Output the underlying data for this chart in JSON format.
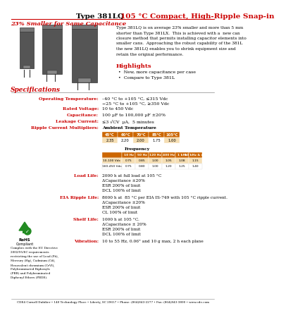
{
  "title_black": "Type 381LQ",
  "title_red": "105 °C Compact, High-Ripple Snap-in",
  "subtitle": "23% Smaller for Same Capacitance",
  "description": "Type 381LQ is on average 23% smaller and more than 5 mm\nshorter than Type 381LX.  This is achieved with a  new can\nclosure method that permits installing capacitor elements into\nsmaller cans.  Approaching the robust capability of the 381L\nthe new 381LQ enables you to shrink equipment size and\nretain the original performance.",
  "highlights_title": "Highlights",
  "highlights": [
    "New, more capacitance per case",
    "Compare to Type 381L"
  ],
  "spec_title": "Specifications",
  "specs": [
    [
      "Operating Temperature:",
      "–40 °C to +105 °C, ≤315 Vdc\n−25 °C to +105 °C, ≥350 Vdc"
    ],
    [
      "Rated Voltage:",
      "10 to 450 Vdc"
    ],
    [
      "Capacitance:",
      "100 µF to 100,000 µF ±20%"
    ],
    [
      "Leakage Current:",
      "≤3 √CV  µA,  5 minutes"
    ],
    [
      "Ripple Current Multipliers:",
      "Ambient Temperature"
    ]
  ],
  "ambient_headers": [
    "45°C",
    "60°C",
    "70°C",
    "85°C",
    "105°C"
  ],
  "ambient_values": [
    "2.35",
    "2.20",
    "2.00",
    "1.75",
    "1.00"
  ],
  "freq_label": "Frequency",
  "freq_headers": [
    "10 Hz",
    "50 Hz",
    "120 Hz",
    "400 Hz",
    "1 kHz",
    "10 kHz & up"
  ],
  "freq_row1_label": "10-100 Vdc",
  "freq_row1": [
    "0.75",
    "0.85",
    "1.00",
    "1.05",
    "1.08",
    "1.15"
  ],
  "freq_row2_label": "160-450 Vdc",
  "freq_row2": [
    "0.75",
    "0.80",
    "1.00",
    "1.20",
    "1.25",
    "1.40"
  ],
  "load_life_label": "Load Life:",
  "load_life": "2000 h at full load at 105 °C\nΔCapacitance ±20%\nESR 200% of limit\nDCL 100% of limit",
  "eia_label": "EIA Ripple Life:",
  "eia": "8000 h at  85 °C per EIA IS-749 with 105 °C ripple current.\nΔCapacitance ±20%\nESR 200% of limit\nCL 100% of limit",
  "shelf_label": "Shelf Life:",
  "shelf": "1000 h at 105 °C.\nΔCapacitance ± 20%\nESR 200% of limit\nDCL 100% of limit",
  "vibration_label": "Vibration:",
  "vibration": "10 to 55 Hz, 0.06\" and 10 g max, 2 h each plane",
  "rohs_text": "Complies with the EU Directive\n2002/95/EC requirements\nrestricting the use of Lead (Pb),\nMercury (Hg), Cadmium (Cd),\nHexavalent chromium (CrVI),\nPolybrominated Biphenyls\n(PBB) and Polybrominated\nDiphenyl Ethers (PBDE).",
  "footer": "CDE4 Cornell Dubilier • 140 Technology Place • Liberty, SC 29657 • Phone: (864)843-2277 • Fax: (864)843-3800 • www.cde.com",
  "red_color": "#cc0000",
  "orange_color": "#cc6600",
  "table_header_bg": "#cc6600",
  "table_header_text": "#ffffff",
  "table_row1_bg": "#f5deb3",
  "table_row2_bg": "#ffffff"
}
